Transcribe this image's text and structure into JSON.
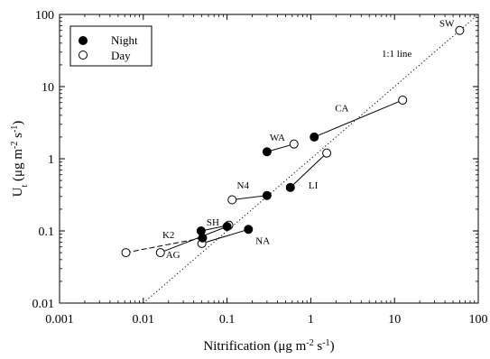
{
  "chart_data": {
    "type": "scatter",
    "x_scale": "log",
    "y_scale": "log",
    "xlim": [
      0.001,
      100
    ],
    "ylim": [
      0.01,
      100
    ],
    "x_ticks": [
      "0.001",
      "0.01",
      "0.1",
      "1",
      "10",
      "100"
    ],
    "y_ticks": [
      "0.01",
      "0.1",
      "1",
      "10",
      "100"
    ],
    "xlabel": {
      "main": "Nitrification (",
      "mu": "μ",
      "unit": "g m",
      "exp1": "-2",
      "mid": " s",
      "exp2": "-1",
      "end": ")"
    },
    "ylabel": {
      "main": "U",
      "sub": "t",
      "open": " (",
      "mu": "μ",
      "unit": "g m",
      "exp1": "-2",
      "mid": " s",
      "exp2": "-1",
      "end": ")"
    },
    "legend": {
      "position": "top-left",
      "entries": [
        {
          "label": "Night",
          "marker": "filled-circle"
        },
        {
          "label": "Day",
          "marker": "open-circle"
        }
      ]
    },
    "reference_line": {
      "label": "1:1 line",
      "style": "dotted"
    },
    "sites": [
      {
        "label": "SW",
        "night": null,
        "day": {
          "x": 60,
          "y": 60
        },
        "link": "none"
      },
      {
        "label": "CA",
        "night": {
          "x": 1.1,
          "y": 2.0
        },
        "day": {
          "x": 12.5,
          "y": 6.5
        },
        "link": "solid"
      },
      {
        "label": "WA",
        "night": {
          "x": 0.3,
          "y": 1.25
        },
        "day": {
          "x": 0.63,
          "y": 1.6
        },
        "link": "solid"
      },
      {
        "label": "LI",
        "night": {
          "x": 0.57,
          "y": 0.4
        },
        "day": {
          "x": 1.55,
          "y": 1.2
        },
        "link": "solid"
      },
      {
        "label": "N4",
        "night": {
          "x": 0.3,
          "y": 0.31
        },
        "day": {
          "x": 0.115,
          "y": 0.27
        },
        "link": "solid"
      },
      {
        "label": "SH",
        "night": {
          "x": 0.049,
          "y": 0.1
        },
        "day": {
          "x": 0.105,
          "y": 0.12
        },
        "link": "solid"
      },
      {
        "label": "NA",
        "night": {
          "x": 0.18,
          "y": 0.105
        },
        "day": {
          "x": 0.05,
          "y": 0.067
        },
        "link": "solid"
      },
      {
        "label": "K2",
        "night": {
          "x": 0.051,
          "y": 0.08
        },
        "day": {
          "x": 0.0062,
          "y": 0.05
        },
        "link": "dashed"
      },
      {
        "label": "AG",
        "night": {
          "x": 0.1,
          "y": 0.115
        },
        "day": {
          "x": 0.016,
          "y": 0.05
        },
        "link": "solid"
      }
    ],
    "colors": {
      "axis": "#000000",
      "marker": "#000000",
      "background": "#ffffff"
    }
  }
}
